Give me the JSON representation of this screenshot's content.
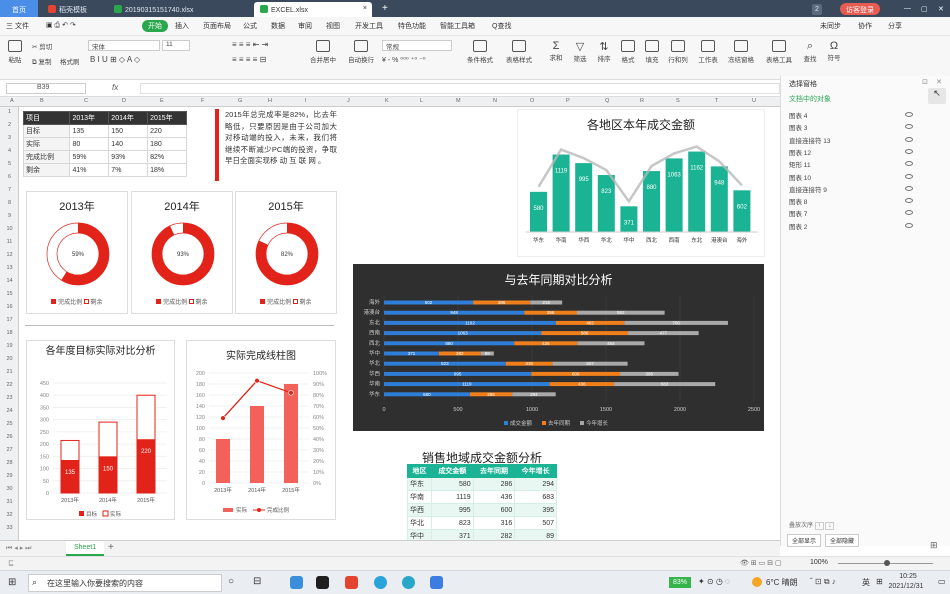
{
  "tabs": {
    "home": "首页",
    "t1": "稻壳模板",
    "t2": "20190315151740.xlsx",
    "t3": "EXCEL.xlsx",
    "badge": "2",
    "login": "访客登录"
  },
  "menu": {
    "file": "三 文件",
    "start": "开始",
    "insert": "插入",
    "layout": "页面布局",
    "formula": "公式",
    "data": "数据",
    "review": "审阅",
    "view": "视图",
    "dev": "开发工具",
    "special": "特色功能",
    "smart": "智能工具箱",
    "search": "Q查找",
    "cloud": "未同步",
    "collab": "协作",
    "share": "分享"
  },
  "ribbon": {
    "paste": "粘贴",
    "cut": "剪切",
    "copy": "复制",
    "painter": "格式刷",
    "font": "宋体",
    "size": "11",
    "merge": "合并居中",
    "wrap": "自动换行",
    "numfmt": "常规",
    "cond": "条件格式",
    "tablefmt": "表格样式",
    "sum": "求和",
    "filter": "筛选",
    "sort": "排序",
    "format": "格式",
    "fill": "填充",
    "rowcol": "行和列",
    "sheet": "工作表",
    "freeze": "冻结窗格",
    "tools": "表格工具",
    "find": "查找",
    "symbol": "符号"
  },
  "formula": {
    "cellref": "B39",
    "fx": "fx"
  },
  "columns": [
    "A",
    "B",
    "C",
    "D",
    "E",
    "F",
    "G",
    "H",
    "I",
    "J",
    "K",
    "L",
    "M",
    "N",
    "O",
    "P",
    "Q",
    "R",
    "S",
    "T",
    "U"
  ],
  "rows": [
    "1",
    "2",
    "3",
    "4",
    "5",
    "6",
    "7",
    "8",
    "9",
    "10",
    "11",
    "12",
    "13",
    "14",
    "15",
    "16",
    "17",
    "18",
    "19",
    "20",
    "21",
    "22",
    "23",
    "24",
    "25",
    "26",
    "27",
    "28",
    "29",
    "30",
    "31",
    "32",
    "33"
  ],
  "summary_table": {
    "header": [
      "项目",
      "2013年",
      "2014年",
      "2015年"
    ],
    "rows": [
      [
        "目标",
        "135",
        "150",
        "220"
      ],
      [
        "实际",
        "80",
        "140",
        "180"
      ],
      [
        "完成比例",
        "59%",
        "93%",
        "82%"
      ],
      [
        "剩余",
        "41%",
        "7%",
        "18%"
      ]
    ]
  },
  "note": "2015年总完成率是82%，比去年略低，只要原因是由于公司加大对移动端的投入，未来，我们将继续不断减少PC端的投资，争取早日全面实现移 动 互 联 网 。",
  "donuts": [
    {
      "title": "2013年",
      "label": "59%",
      "value": 0.59,
      "legend": [
        "完成比例",
        "剩余"
      ]
    },
    {
      "title": "2014年",
      "label": "93%",
      "value": 0.93,
      "legend": [
        "完成比例",
        "剩余"
      ]
    },
    {
      "title": "2015年",
      "label": "82%",
      "value": 0.82,
      "legend": [
        "完成比例",
        "剩余"
      ]
    }
  ],
  "chart_data": [
    {
      "type": "bar",
      "title": "各地区本年成交金额",
      "categories": [
        "华东",
        "华南",
        "华西",
        "华北",
        "华中",
        "西北",
        "西南",
        "东北",
        "港澳台",
        "海外"
      ],
      "values": [
        580,
        1119,
        995,
        823,
        371,
        880,
        1063,
        1162,
        948,
        602
      ],
      "colors": {
        "bar": "#1ab394",
        "line": "#b8b8b8"
      }
    },
    {
      "type": "bar",
      "title": "与去年同期对比分析",
      "categories": [
        "华东",
        "华南",
        "华西",
        "华北",
        "华中",
        "西北",
        "西南",
        "东北",
        "港澳台",
        "海外"
      ],
      "series": [
        {
          "name": "成交金额",
          "values": [
            580,
            1119,
            995,
            823,
            371,
            880,
            1063,
            1162,
            948,
            602
          ]
        },
        {
          "name": "去年同期",
          "values": [
            286,
            436,
            600,
            316,
            282,
            426,
            586,
            462,
            356,
            386
          ]
        },
        {
          "name": "今年增长",
          "values": [
            294,
            683,
            395,
            507,
            89,
            454,
            477,
            700,
            592,
            216
          ]
        }
      ],
      "xlim": [
        0,
        2500
      ],
      "xticks": [
        "0",
        "500",
        "1000",
        "1500",
        "2000",
        "2500"
      ],
      "colors": [
        "#2e7dd6",
        "#ef7f1a",
        "#a9a9a9"
      ]
    },
    {
      "type": "bar",
      "title": "各年度目标实际对比分析",
      "categories": [
        "2013年",
        "2014年",
        "2015年"
      ],
      "series": [
        {
          "name": "目标",
          "values": [
            135,
            150,
            220
          ]
        },
        {
          "name": "实际",
          "values": [
            80,
            140,
            180
          ]
        }
      ],
      "ylim": [
        0,
        450
      ],
      "yticks": [
        "450",
        "400",
        "350",
        "300",
        "250",
        "200",
        "150",
        "100",
        "50",
        "0"
      ],
      "labels": [
        "135",
        "150",
        "220"
      ]
    },
    {
      "type": "bar",
      "title": "实际完成线柱图",
      "categories": [
        "2013年",
        "2014年",
        "2015年"
      ],
      "series": [
        {
          "name": "实际",
          "values": [
            80,
            140,
            180
          ]
        },
        {
          "name": "完成比例",
          "values": [
            59,
            93,
            82
          ]
        }
      ],
      "ylim": [
        0,
        200
      ],
      "yticks": [
        "200",
        "180",
        "160",
        "140",
        "120",
        "100",
        "80",
        "60",
        "40",
        "20",
        "0"
      ],
      "y2ticks": [
        "100%",
        "90%",
        "80%",
        "70%",
        "60%",
        "50%",
        "40%",
        "30%",
        "20%",
        "10%",
        "0%"
      ]
    },
    {
      "type": "table",
      "title": "销售地域成交金额分析",
      "header": [
        "地区",
        "成交金额",
        "去年同期",
        "今年增长"
      ],
      "rows": [
        [
          "华东",
          "580",
          "286",
          "294"
        ],
        [
          "华南",
          "1119",
          "436",
          "683"
        ],
        [
          "华西",
          "995",
          "600",
          "395"
        ],
        [
          "华北",
          "823",
          "316",
          "507"
        ],
        [
          "华中",
          "371",
          "282",
          "89"
        ]
      ]
    }
  ],
  "pane": {
    "title": "选择窗格",
    "subtitle": "文档中的对象",
    "items": [
      "图表 4",
      "图表 3",
      "直接连接符 13",
      "图表 12",
      "矩形 11",
      "图表 10",
      "直接连接符 9",
      "图表 8",
      "图表 7",
      "图表 2"
    ],
    "order": "叠放次序",
    "showall": "全部显示",
    "hideall": "全部隐藏"
  },
  "sheet": {
    "tab": "Sheet1",
    "zoom": "100%"
  },
  "taskbar": {
    "search": "在这里输入你要搜索的内容",
    "battery": "83%",
    "weather": "6°C 晴朗",
    "ime": "英",
    "time": "10:25",
    "date": "2021/12/31"
  }
}
